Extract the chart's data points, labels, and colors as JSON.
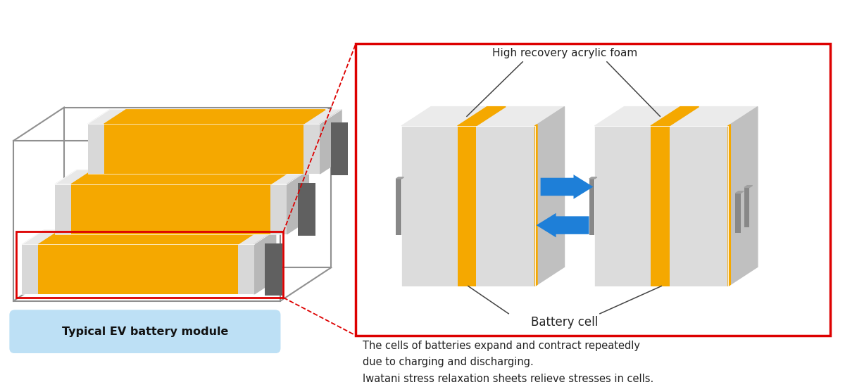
{
  "bg_color": "#ffffff",
  "title": "Typical EV battery module",
  "title_bg": "#BDE0F5",
  "annotation_text1": "High recovery acrylic foam",
  "annotation_text2": "Battery cell",
  "desc_text": "The cells of batteries expand and contract repeatedly\ndue to charging and discharging.\nIwatani stress relaxation sheets relieve stresses in cells.",
  "orange_color": "#F5A800",
  "light_gray": "#E0E0E0",
  "mid_gray": "#C8C8C8",
  "dark_gray": "#888888",
  "darker_gray": "#606060",
  "blue_arrow": "#1E7FD8",
  "red_color": "#DD0000",
  "label_color": "#222222"
}
